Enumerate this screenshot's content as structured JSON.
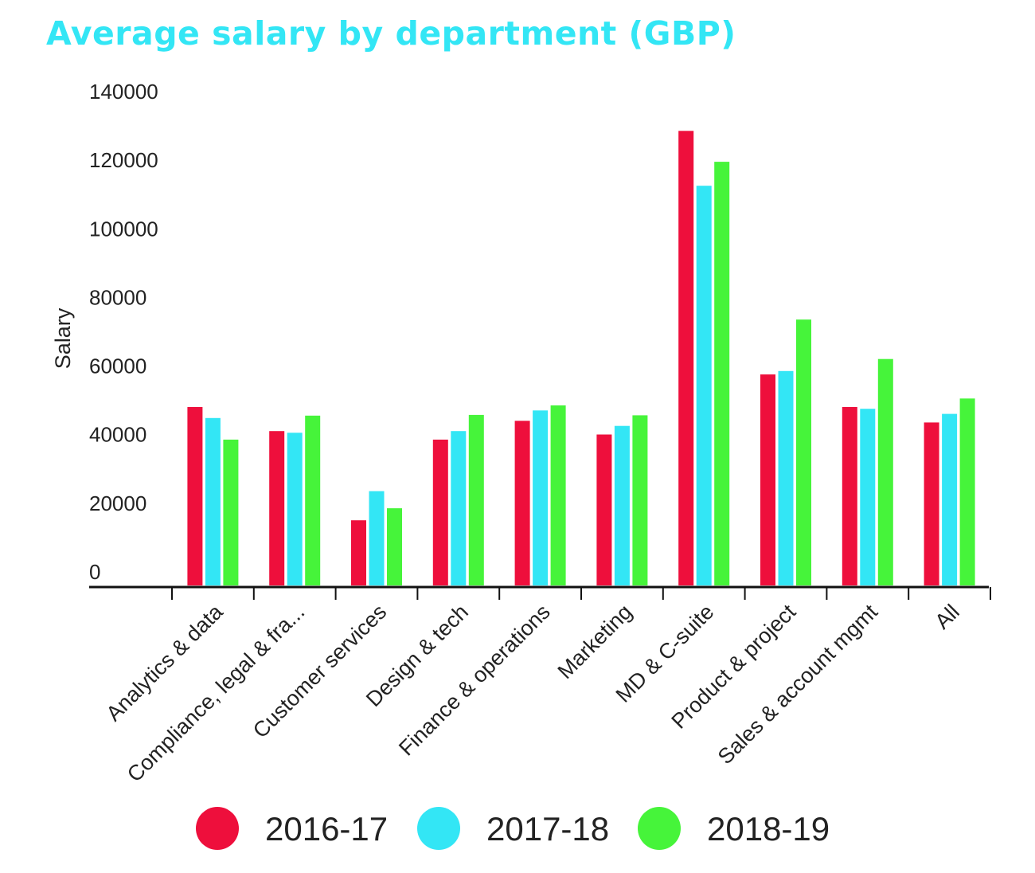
{
  "chart_data": {
    "type": "bar",
    "title": "Average salary by department (GBP)",
    "ylabel": "Salary",
    "xlabel": "",
    "ylim": [
      0,
      140000
    ],
    "yticks": [
      0,
      20000,
      40000,
      60000,
      80000,
      100000,
      120000,
      140000
    ],
    "categories": [
      "Analytics & data",
      "Compliance, legal & fra...",
      "Customer services",
      "Design & tech",
      "Finance & operations",
      "Marketing",
      "MD & C-suite",
      "Product & project",
      "Sales & account mgmt",
      "All"
    ],
    "series": [
      {
        "name": "2016-17",
        "color": "#ee0f3c",
        "values": [
          52000,
          45000,
          19000,
          42500,
          48000,
          44000,
          132500,
          61500,
          52000,
          47500
        ]
      },
      {
        "name": "2017-18",
        "color": "#33e6f5",
        "values": [
          48800,
          44500,
          27500,
          45000,
          51000,
          46500,
          116500,
          62500,
          51500,
          50000
        ]
      },
      {
        "name": "2018-19",
        "color": "#46f43a",
        "values": [
          42500,
          49500,
          22500,
          49700,
          52500,
          49600,
          123500,
          77500,
          66000,
          54500
        ]
      }
    ],
    "grid": false,
    "legend_position": "bottom"
  }
}
